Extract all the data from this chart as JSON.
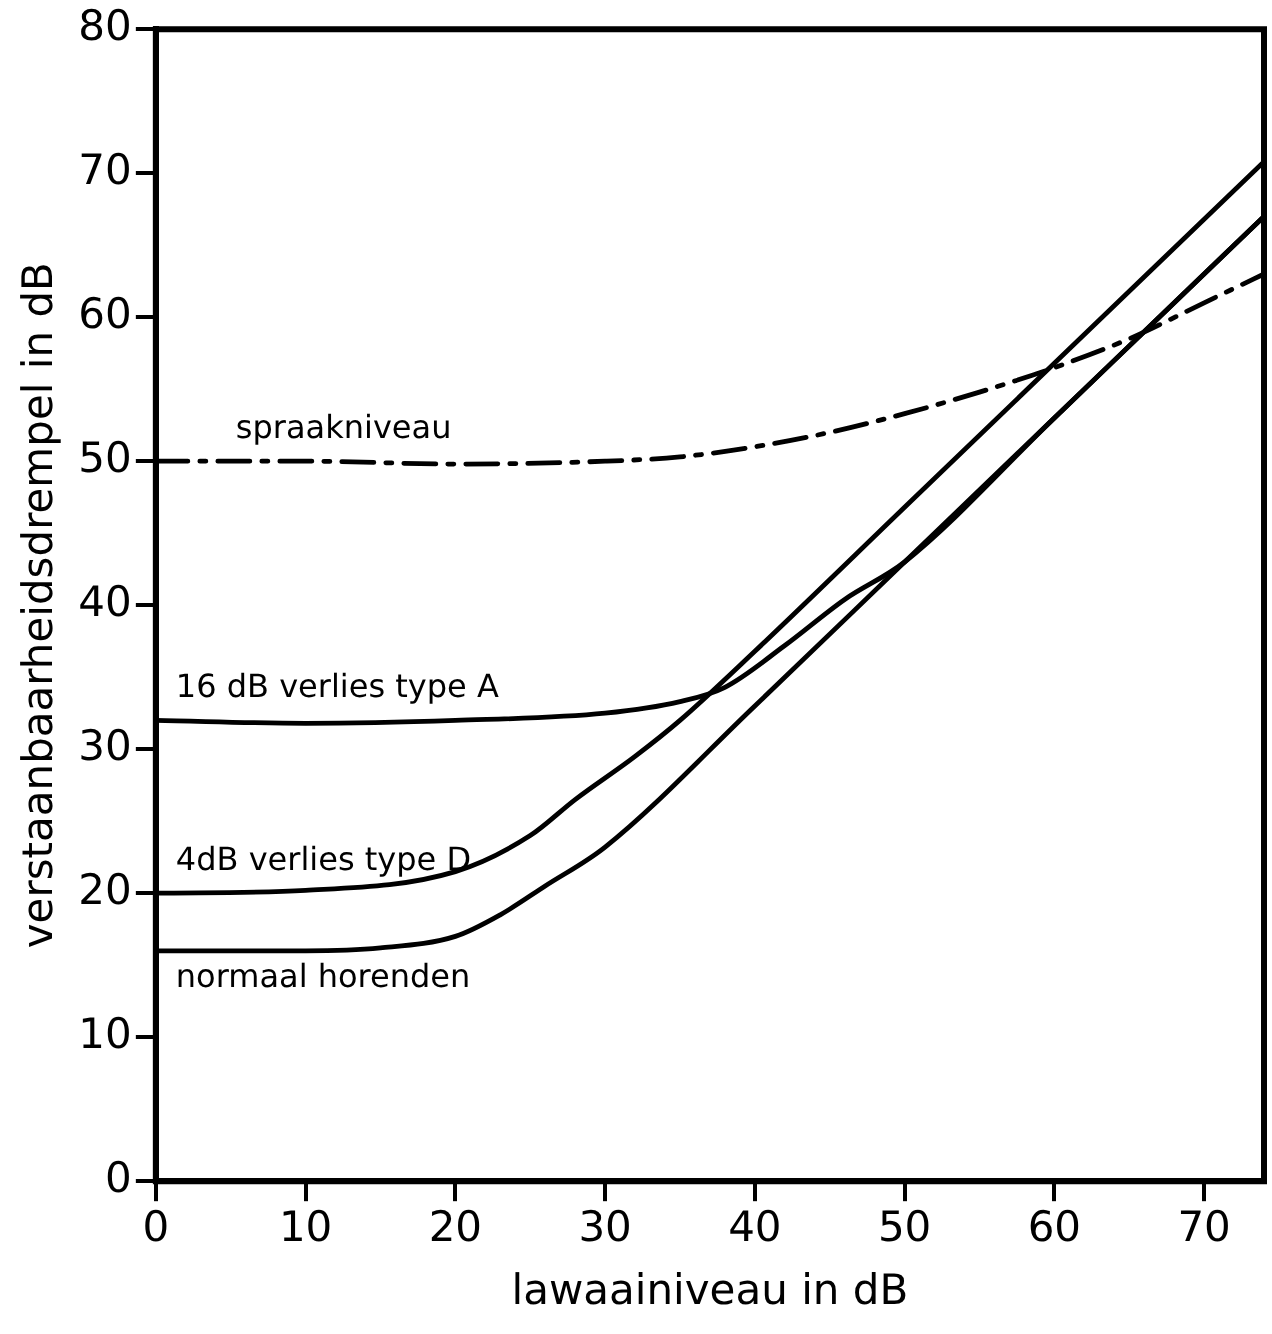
{
  "chart_data": {
    "type": "line",
    "xlabel": "lawaainiveau in dB",
    "ylabel": "verstaanbaarheidsdrempel in dB",
    "xlim": [
      0,
      74
    ],
    "ylim": [
      0,
      80
    ],
    "xticks": [
      0,
      10,
      20,
      30,
      40,
      50,
      60,
      70
    ],
    "yticks": [
      0,
      10,
      20,
      30,
      40,
      50,
      60,
      70,
      80
    ],
    "grid": false,
    "legend": false,
    "marker": "none",
    "series": [
      {
        "name": "spraakniveau",
        "color": "#000000",
        "line_style": "dashdot",
        "x": [
          0,
          10,
          20,
          30,
          35,
          40,
          45,
          50,
          55,
          60,
          65,
          70,
          74
        ],
        "values": [
          50,
          50,
          49.8,
          50,
          50.3,
          51,
          52,
          53.3,
          54.8,
          56.5,
          58.5,
          61,
          63
        ]
      },
      {
        "name": "16 dB verlies type A",
        "color": "#000000",
        "line_style": "solid",
        "x": [
          0,
          10,
          20,
          30,
          35,
          38,
          42,
          46,
          50,
          60,
          67,
          74
        ],
        "values": [
          32,
          31.8,
          32,
          32.5,
          33.3,
          34.3,
          37.2,
          40.4,
          43,
          53,
          60,
          67
        ]
      },
      {
        "name": "4dB verlies type D",
        "color": "#000000",
        "line_style": "solid",
        "x": [
          0,
          10,
          20,
          25,
          28,
          32,
          35,
          40,
          50,
          60,
          74
        ],
        "values": [
          20,
          20.2,
          21.5,
          24,
          26.5,
          29.5,
          32,
          36.8,
          46.8,
          56.8,
          70.8
        ]
      },
      {
        "name": "normaal horenden",
        "color": "#000000",
        "line_style": "solid",
        "x": [
          0,
          10,
          15,
          20,
          23,
          26,
          30,
          40,
          50,
          60,
          67,
          74
        ],
        "values": [
          16,
          16,
          16.2,
          17,
          18.5,
          20.5,
          23.2,
          33,
          43,
          53,
          60,
          67
        ]
      }
    ]
  }
}
